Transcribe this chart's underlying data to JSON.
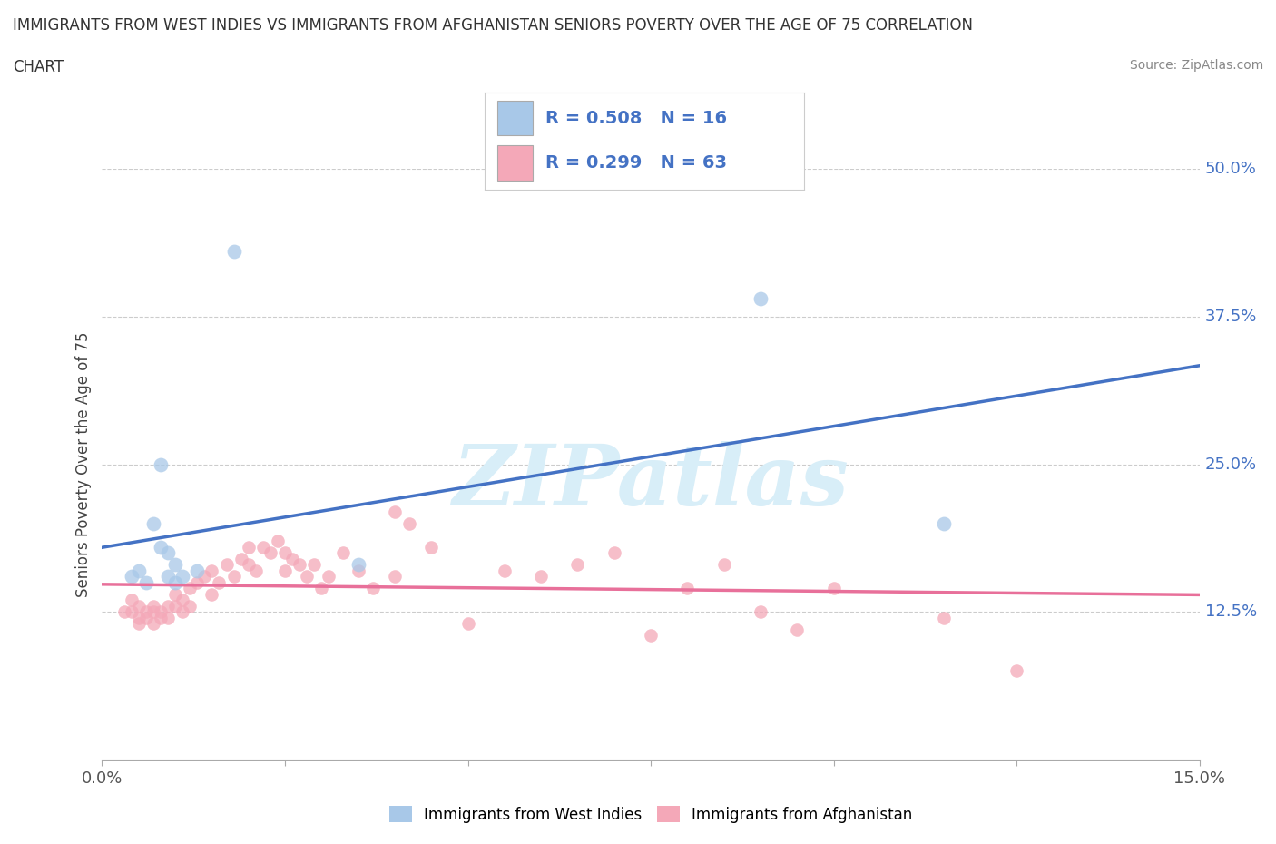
{
  "title_line1": "IMMIGRANTS FROM WEST INDIES VS IMMIGRANTS FROM AFGHANISTAN SENIORS POVERTY OVER THE AGE OF 75 CORRELATION",
  "title_line2": "CHART",
  "source": "Source: ZipAtlas.com",
  "ylabel": "Seniors Poverty Over the Age of 75",
  "xlim": [
    0.0,
    0.15
  ],
  "ylim": [
    0.0,
    0.5
  ],
  "xticks": [
    0.0,
    0.025,
    0.05,
    0.075,
    0.1,
    0.125,
    0.15
  ],
  "xticklabels": [
    "0.0%",
    "",
    "",
    "",
    "",
    "",
    "15.0%"
  ],
  "yticks_right": [
    0.125,
    0.25,
    0.375,
    0.5
  ],
  "ytick_right_labels": [
    "12.5%",
    "25.0%",
    "37.5%",
    "50.0%"
  ],
  "color_west_indies": "#a8c8e8",
  "color_afghanistan": "#f4a8b8",
  "color_line_west_indies": "#4472c4",
  "color_line_afghanistan": "#e8709a",
  "watermark": "ZIPatlas",
  "watermark_color": "#d8eef8",
  "west_indies_x": [
    0.004,
    0.005,
    0.006,
    0.007,
    0.008,
    0.008,
    0.009,
    0.009,
    0.01,
    0.01,
    0.011,
    0.013,
    0.018,
    0.035,
    0.09,
    0.115
  ],
  "west_indies_y": [
    0.155,
    0.16,
    0.15,
    0.2,
    0.18,
    0.25,
    0.155,
    0.175,
    0.15,
    0.165,
    0.155,
    0.16,
    0.43,
    0.165,
    0.39,
    0.2
  ],
  "afghanistan_x": [
    0.003,
    0.004,
    0.004,
    0.005,
    0.005,
    0.005,
    0.006,
    0.006,
    0.007,
    0.007,
    0.007,
    0.008,
    0.008,
    0.009,
    0.009,
    0.01,
    0.01,
    0.011,
    0.011,
    0.012,
    0.012,
    0.013,
    0.014,
    0.015,
    0.015,
    0.016,
    0.017,
    0.018,
    0.019,
    0.02,
    0.02,
    0.021,
    0.022,
    0.023,
    0.024,
    0.025,
    0.025,
    0.026,
    0.027,
    0.028,
    0.029,
    0.03,
    0.031,
    0.033,
    0.035,
    0.037,
    0.04,
    0.042,
    0.045,
    0.05,
    0.055,
    0.06,
    0.065,
    0.07,
    0.075,
    0.08,
    0.085,
    0.09,
    0.095,
    0.1,
    0.115,
    0.125,
    0.04
  ],
  "afghanistan_y": [
    0.125,
    0.125,
    0.135,
    0.12,
    0.13,
    0.115,
    0.12,
    0.125,
    0.115,
    0.125,
    0.13,
    0.12,
    0.125,
    0.12,
    0.13,
    0.13,
    0.14,
    0.125,
    0.135,
    0.13,
    0.145,
    0.15,
    0.155,
    0.14,
    0.16,
    0.15,
    0.165,
    0.155,
    0.17,
    0.165,
    0.18,
    0.16,
    0.18,
    0.175,
    0.185,
    0.175,
    0.16,
    0.17,
    0.165,
    0.155,
    0.165,
    0.145,
    0.155,
    0.175,
    0.16,
    0.145,
    0.155,
    0.2,
    0.18,
    0.115,
    0.16,
    0.155,
    0.165,
    0.175,
    0.105,
    0.145,
    0.165,
    0.125,
    0.11,
    0.145,
    0.12,
    0.075,
    0.21
  ]
}
